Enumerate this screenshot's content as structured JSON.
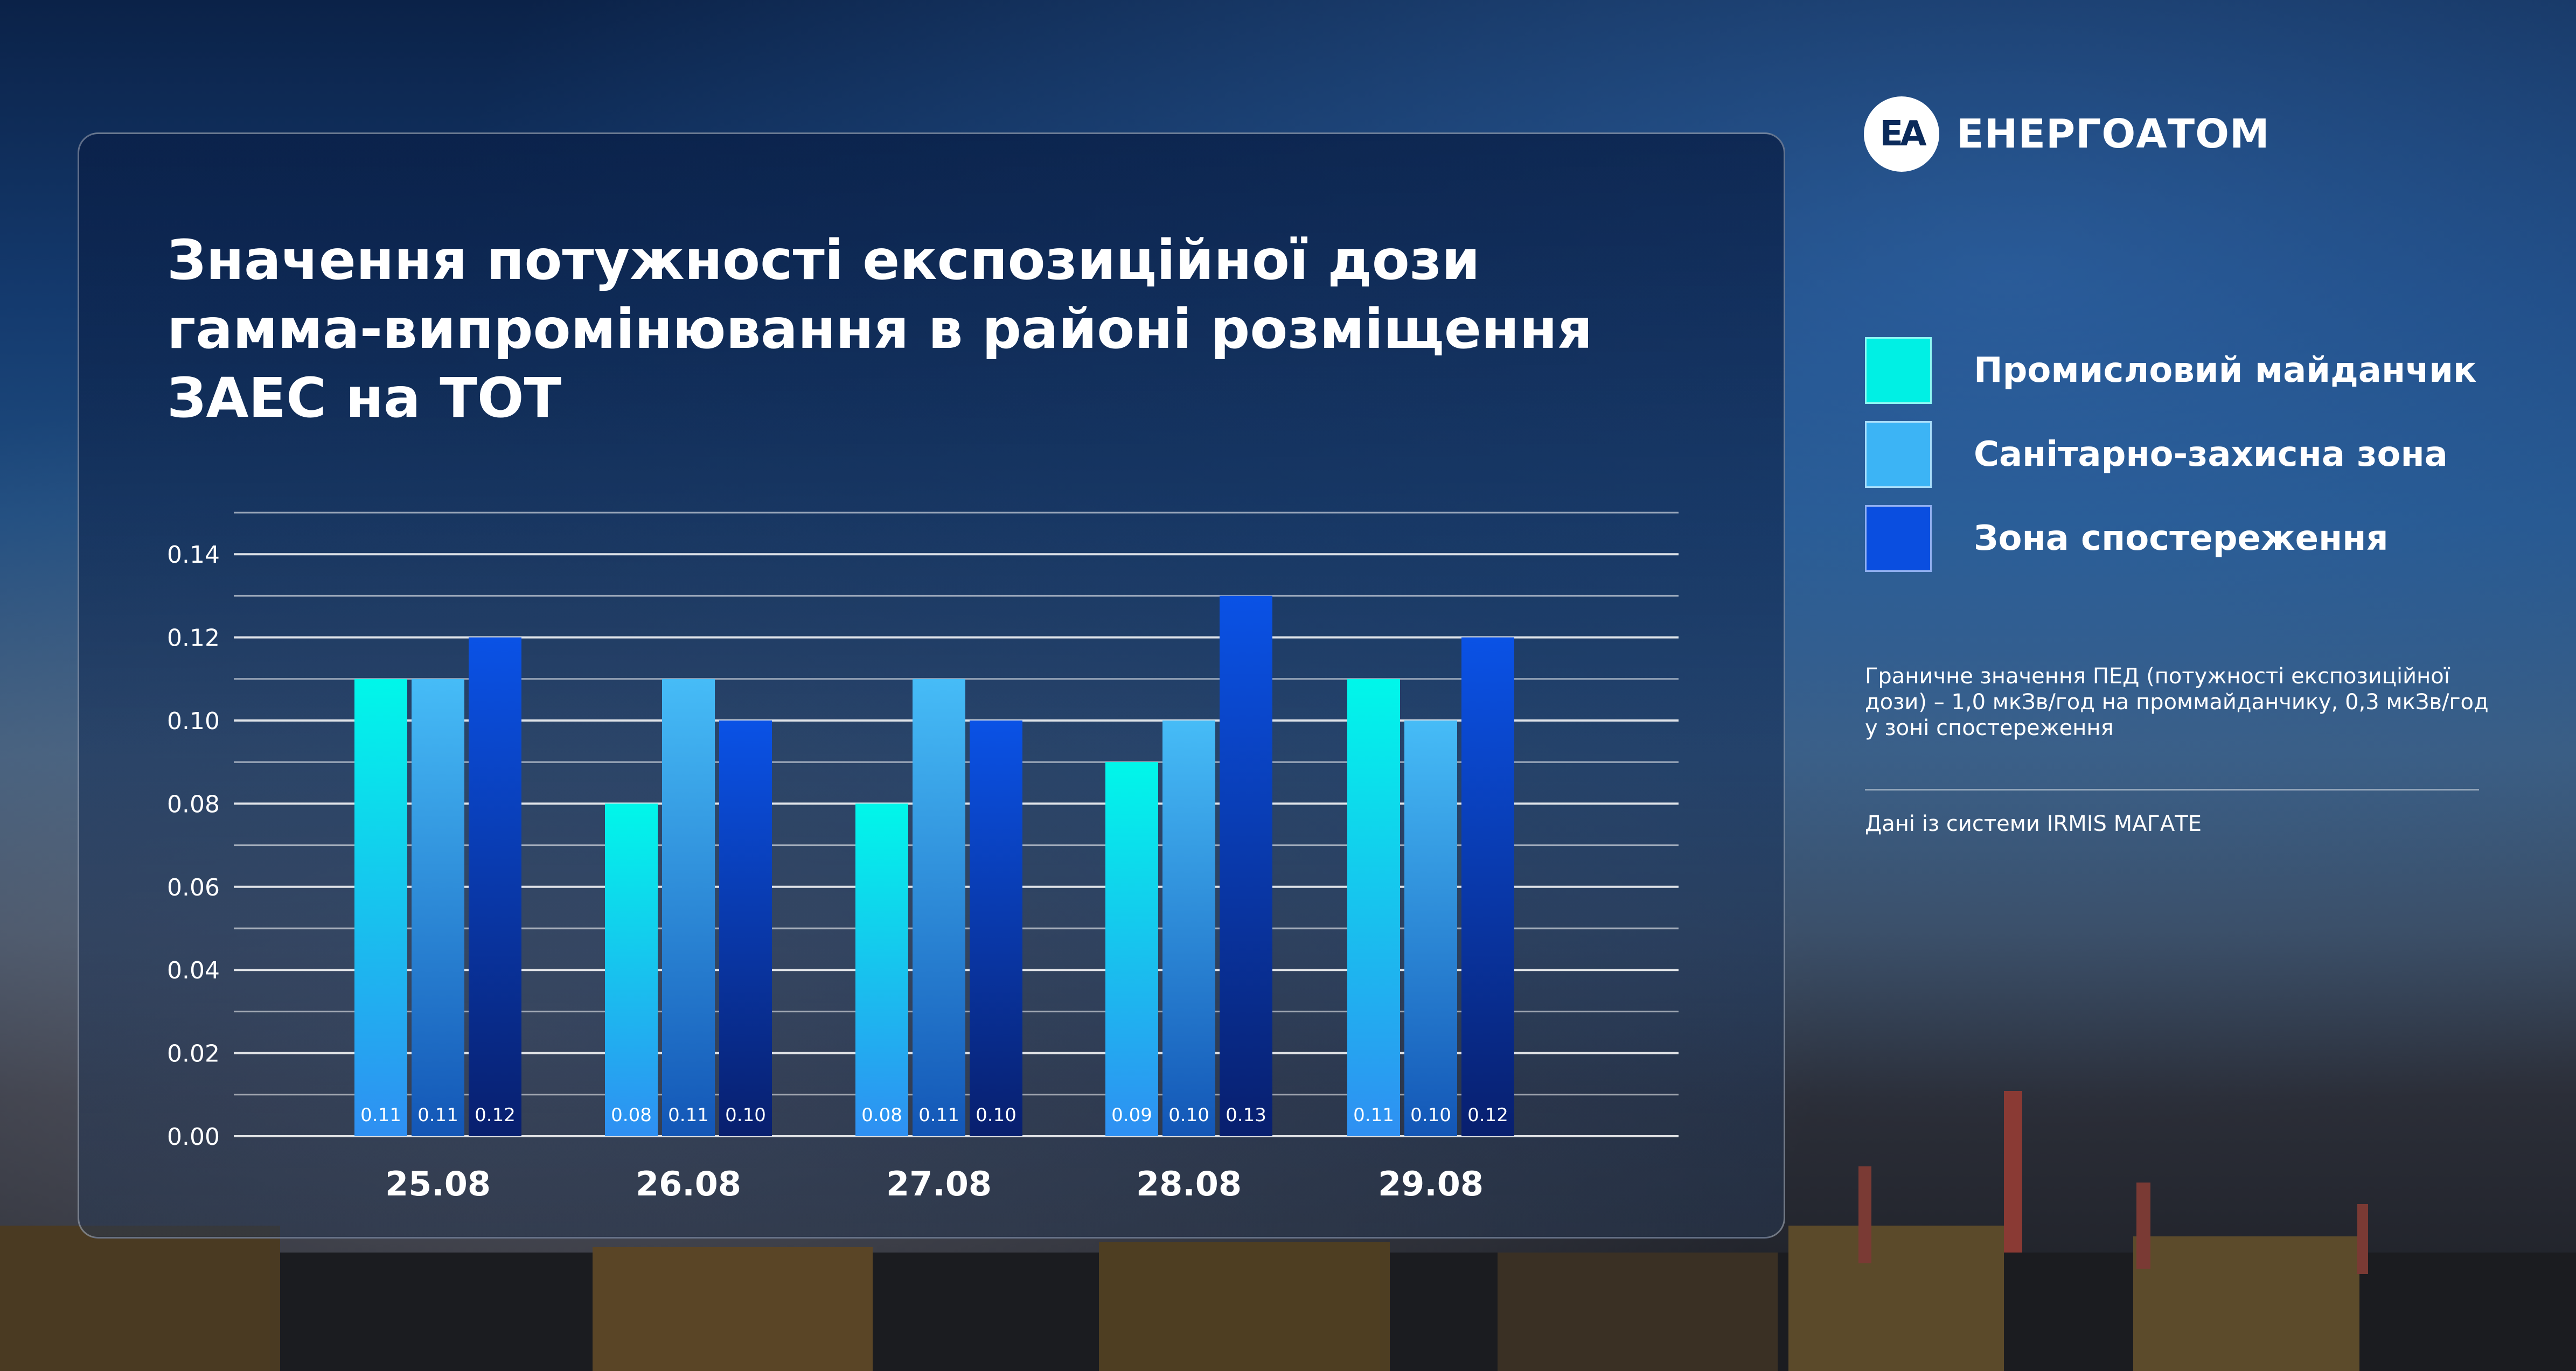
{
  "brand": {
    "logo_mark": "EA",
    "name": "ЕНЕРГОАТОМ"
  },
  "legend": [
    {
      "label": "Промисловий майданчик",
      "color": "#00f0e4"
    },
    {
      "label": "Санітарно-захисна зона",
      "color": "#3cb4f5"
    },
    {
      "label": "Зона спостереження",
      "color": "#0a4ee0"
    }
  ],
  "note": "Граничне значення ПЕД (потужності експозиційної дози) – 1,0 мкЗв/год на проммайданчику, 0,3 мкЗв/год у зоні спостереження",
  "source": "Дані із системи IRMIS МАГАТЕ",
  "chart_data": {
    "type": "bar",
    "title": "Значення потужності експозиційної дози гамма-випромінювання в районі розміщення ЗАЕС на ТОТ",
    "categories": [
      "25.08",
      "26.08",
      "27.08",
      "28.08",
      "29.08"
    ],
    "series": [
      {
        "name": "Промисловий майданчик",
        "values": [
          0.11,
          0.08,
          0.08,
          0.09,
          0.11
        ],
        "labels": [
          "0.11",
          "0.08",
          "0.08",
          "0.09",
          "0.11"
        ]
      },
      {
        "name": "Санітарно-захисна зона",
        "values": [
          0.11,
          0.11,
          0.11,
          0.1,
          0.1
        ],
        "labels": [
          "0.11",
          "0.11",
          "0.11",
          "0.10",
          "0.10"
        ]
      },
      {
        "name": "Зона спостереження",
        "values": [
          0.12,
          0.1,
          0.1,
          0.13,
          0.12
        ],
        "labels": [
          "0.12",
          "0.10",
          "0.10",
          "0.13",
          "0.12"
        ]
      }
    ],
    "yticks": [
      "0.00",
      "0.02",
      "0.04",
      "0.06",
      "0.08",
      "0.10",
      "0.12",
      "0.14"
    ],
    "ylim": [
      0,
      0.15
    ],
    "grid": true,
    "legend_position": "right"
  }
}
